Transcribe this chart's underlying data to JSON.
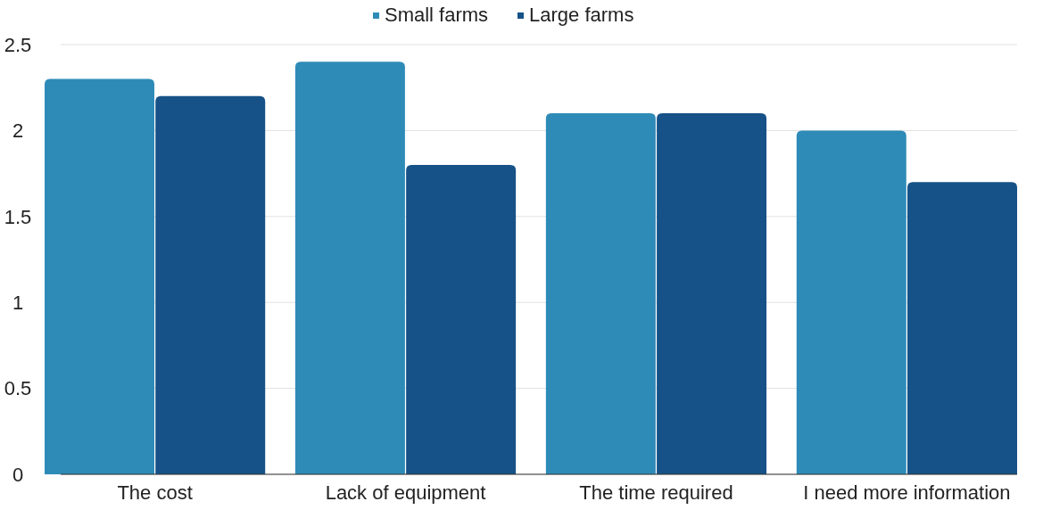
{
  "chart_data": {
    "type": "bar",
    "categories": [
      "The cost",
      "Lack of equipment",
      "The time required",
      "I need more information"
    ],
    "series": [
      {
        "name": "Small farms",
        "color": "#2e8bb8",
        "values": [
          2.3,
          2.4,
          2.1,
          2.0
        ]
      },
      {
        "name": "Large farms",
        "color": "#165287",
        "values": [
          2.2,
          1.8,
          2.1,
          1.7
        ]
      }
    ],
    "ylim": [
      0,
      2.5
    ],
    "yticks": [
      0,
      0.5,
      1,
      1.5,
      2,
      2.5
    ],
    "grid": "y",
    "legend": "top"
  }
}
